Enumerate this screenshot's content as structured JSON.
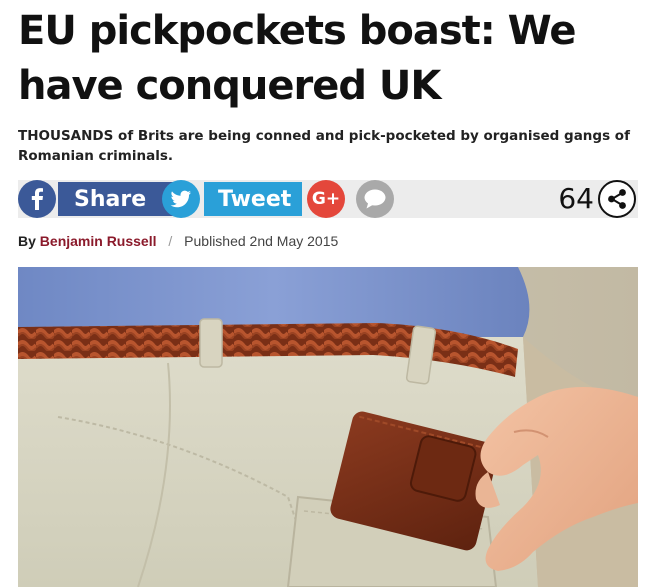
{
  "article": {
    "headline": "EU pickpockets boast: We have conquered UK",
    "standfirst": "THOUSANDS of Brits are being conned and pick-pocketed by organised gangs of Romanian criminals.",
    "byline": {
      "by": "By",
      "author": "Benjamin Russell",
      "separator": "/",
      "published": "Published 2nd May 2015"
    }
  },
  "share": {
    "facebook_label": "Share",
    "twitter_label": "Tweet",
    "google_label": "G+",
    "count": "64",
    "icons": {
      "facebook": "facebook-icon",
      "twitter": "twitter-bird-icon",
      "google": "google-plus-icon",
      "comment": "comment-bubble-icon",
      "share": "share-icon"
    }
  },
  "colors": {
    "facebook": "#3b5998",
    "twitter": "#2aa0d8",
    "google": "#e4473b",
    "comment": "#a9a9a9",
    "author": "#8b1a2b"
  },
  "image": {
    "subject": "hand-pulling-wallet-from-pocket"
  }
}
